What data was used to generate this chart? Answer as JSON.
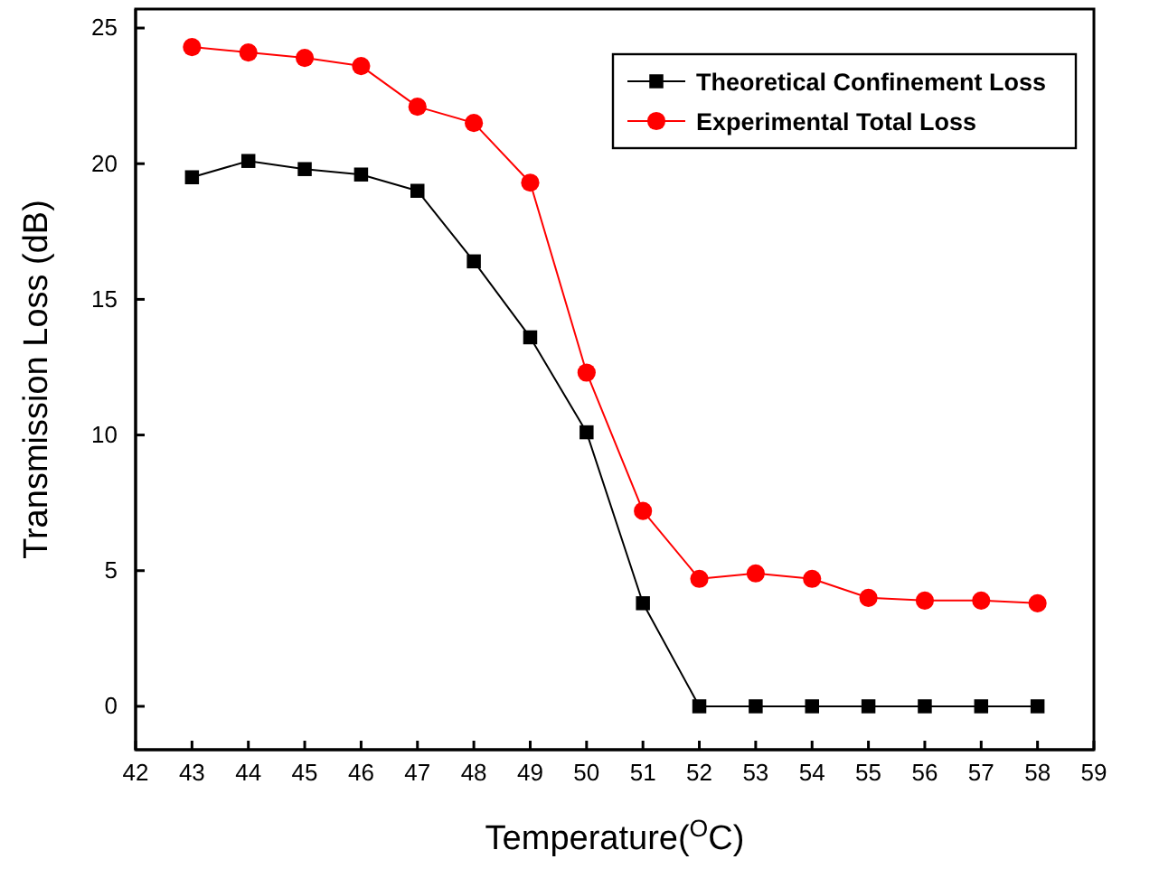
{
  "chart_data": {
    "type": "line",
    "xlabel": "Temperature($^{O}$C)",
    "ylabel": "Transmission Loss (dB)",
    "x": [
      43,
      44,
      45,
      46,
      47,
      48,
      49,
      50,
      51,
      52,
      53,
      54,
      55,
      56,
      57,
      58
    ],
    "xlim": [
      42,
      59
    ],
    "xticks": [
      42,
      43,
      44,
      45,
      46,
      47,
      48,
      49,
      50,
      51,
      52,
      53,
      54,
      55,
      56,
      57,
      58,
      59
    ],
    "ylim": [
      -1.6,
      25.7
    ],
    "yticks": [
      0,
      5,
      10,
      15,
      20,
      25
    ],
    "legend": "top right",
    "grid": false,
    "series": [
      {
        "name": "Theoretical Confinement Loss",
        "color": "#000000",
        "marker": "square",
        "values": [
          19.5,
          20.1,
          19.8,
          19.6,
          19.0,
          16.4,
          13.6,
          10.1,
          3.8,
          0,
          0,
          0,
          0,
          0,
          0,
          0
        ]
      },
      {
        "name": "Experimental Total Loss",
        "color": "#ff0000",
        "marker": "circle",
        "values": [
          24.3,
          24.1,
          23.9,
          23.6,
          22.1,
          21.5,
          19.3,
          12.3,
          7.2,
          4.7,
          4.9,
          4.7,
          4.0,
          3.9,
          3.9,
          3.8
        ]
      }
    ]
  }
}
